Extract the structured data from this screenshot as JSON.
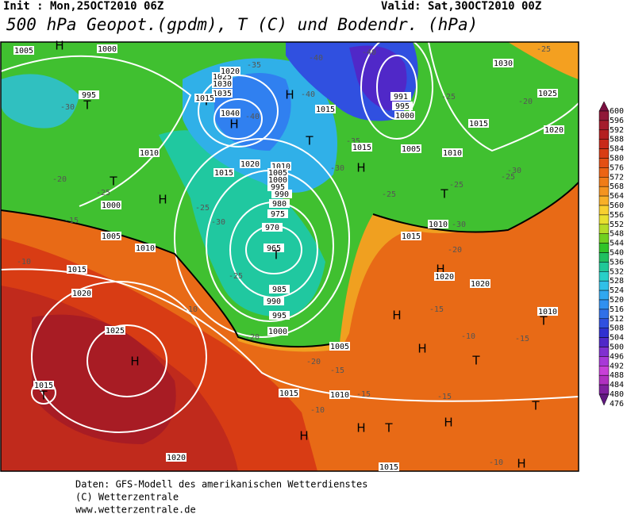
{
  "header": {
    "init": "Init : Mon,25OCT2010 06Z",
    "valid": "Valid: Sat,30OCT2010 00Z",
    "title": "500 hPa Geopot.(gpdm), T (C) und Bodendr. (hPa)"
  },
  "colorbar": {
    "levels": [
      600,
      596,
      592,
      588,
      584,
      580,
      576,
      572,
      568,
      564,
      560,
      556,
      552,
      548,
      544,
      540,
      536,
      532,
      528,
      524,
      520,
      516,
      512,
      508,
      504,
      500,
      496,
      492,
      488,
      484,
      480,
      476
    ],
    "colors": [
      "#7a1040",
      "#901838",
      "#a41c2c",
      "#b42020",
      "#c82a1a",
      "#d83c14",
      "#e45014",
      "#ec6414",
      "#f07c18",
      "#f49420",
      "#f8b028",
      "#f8d030",
      "#e8e030",
      "#b4dc28",
      "#70d020",
      "#30c428",
      "#20c060",
      "#20c898",
      "#28d0c8",
      "#30c0e8",
      "#30a8f0",
      "#3090f0",
      "#3070e8",
      "#3050e0",
      "#3030d0",
      "#5028c8",
      "#8030d0",
      "#a838d8",
      "#c840d8",
      "#b030c0",
      "#8020a0",
      "#601880"
    ]
  },
  "map": {
    "labels": [
      "1005",
      "H",
      "1000",
      "995",
      "T",
      "-30",
      "1010",
      "-20",
      "-25",
      "T",
      "1000",
      "H",
      "-15",
      "1005",
      "-10",
      "1015",
      "1010",
      "1020",
      "1025",
      "H",
      "1015",
      "T",
      "1020",
      "-10",
      "-20",
      "1000",
      "995",
      "990",
      "985",
      "965",
      "T",
      "970",
      "975",
      "980",
      "-25",
      "-30",
      "-25",
      "1010",
      "1005",
      "1000",
      "995",
      "990",
      "1015",
      "1020",
      "H",
      "1040",
      "-40",
      "1035",
      "1030",
      "1025",
      "1020",
      "-35",
      "T",
      "1015",
      "H",
      "T",
      "-40",
      "-40",
      "-40",
      "-35",
      "1015",
      "1015",
      "H",
      "-30",
      "1005",
      "1010",
      "991",
      "995",
      "1000",
      "-25",
      "1015",
      "1030",
      "-25",
      "-20",
      "1025",
      "1020",
      "-30",
      "-25",
      "T",
      "-25",
      "-25",
      "1010",
      "-30",
      "1015",
      "-20",
      "H",
      "1020",
      "1020",
      "-15",
      "H",
      "-10",
      "T",
      "H",
      "-15",
      "1010",
      "T",
      "1005",
      "1010",
      "-15",
      "1015",
      "-15",
      "-20",
      "-15",
      "H",
      "T",
      "T",
      "H",
      "H",
      "-10",
      "1015",
      "-10",
      "H"
    ]
  },
  "footer": {
    "lines": [
      "Daten: GFS-Modell des amerikanischen Wetterdienstes",
      "(C) Wetterzentrale",
      "www.wetterzentrale.de"
    ]
  }
}
